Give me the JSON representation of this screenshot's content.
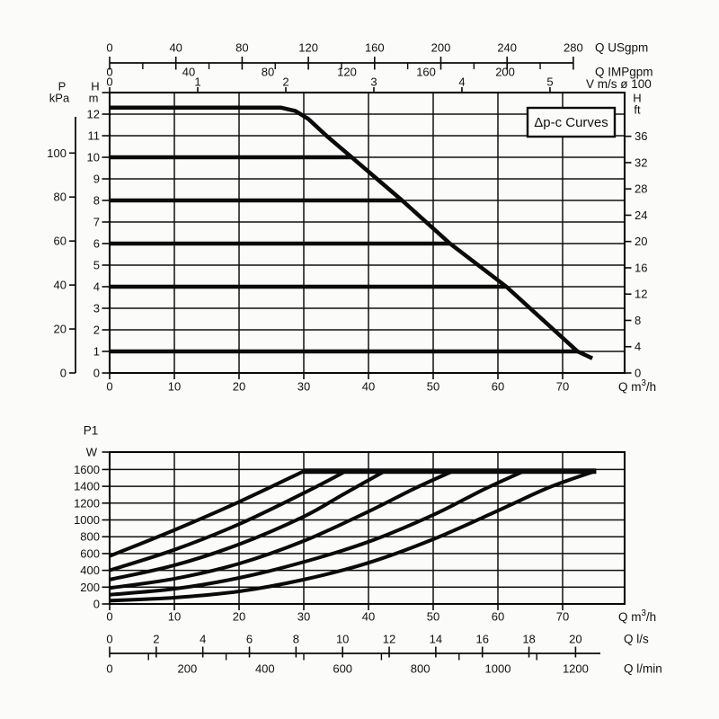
{
  "page": {
    "background": "#fbfbfa",
    "ink": "#0a0a0a",
    "grid_ink": "#111111",
    "text_color": "#111111"
  },
  "title_box": {
    "label": "Δp-c Curves"
  },
  "chart_data": [
    {
      "type": "line",
      "name": "head-vs-flow",
      "xlabel": {
        "pre": "Q m",
        "sup": "3",
        "post": "/h"
      },
      "x_ticks": [
        0,
        10,
        20,
        30,
        40,
        50,
        60,
        70
      ],
      "x_range": [
        0,
        79.6
      ],
      "y_range_m": [
        0,
        13
      ],
      "grid": true,
      "y_axis_m": {
        "header": [
          "H",
          "m"
        ],
        "ticks": [
          0,
          1,
          2,
          3,
          4,
          5,
          6,
          7,
          8,
          9,
          10,
          11,
          12
        ]
      },
      "y_axis_kpa": {
        "header": [
          "P",
          "kPa"
        ],
        "ticks": [
          0,
          20,
          40,
          60,
          80,
          100
        ],
        "m_per_kpa": 0.10197
      },
      "y_axis_ft": {
        "header": [
          "H",
          "ft"
        ],
        "ticks": [
          0,
          4,
          8,
          12,
          16,
          20,
          24,
          28,
          32,
          36
        ],
        "m_per_ft": 0.3048
      },
      "top_axes": [
        {
          "id": "usgpm",
          "label": "Q USgpm",
          "ticks": [
            0,
            40,
            80,
            120,
            160,
            200,
            240,
            280
          ],
          "minor_step": 20,
          "m3h_per_unit": 0.2559
        },
        {
          "id": "impgpm",
          "label": "Q IMPgpm",
          "ticks": [
            0,
            40,
            80,
            120,
            160,
            200
          ],
          "m3h_per_unit": 0.3056
        },
        {
          "id": "v",
          "label": "V m/s ø 100",
          "ticks": [
            0,
            1,
            2,
            3,
            4,
            5
          ],
          "m3h_per_unit": 13.61
        }
      ],
      "max_curve": [
        [
          0,
          12.3
        ],
        [
          26.5,
          12.3
        ],
        [
          28.7,
          12.15
        ],
        [
          30.7,
          11.78
        ],
        [
          33.5,
          11.0
        ],
        [
          37.4,
          10
        ],
        [
          45.2,
          8
        ],
        [
          52.6,
          6
        ],
        [
          61.3,
          4
        ],
        [
          72.3,
          1
        ],
        [
          74.6,
          0.68
        ]
      ],
      "constant_pressure_lines": [
        {
          "h": 10,
          "q_end": 37.4
        },
        {
          "h": 8,
          "q_end": 45.2
        },
        {
          "h": 6,
          "q_end": 52.6
        },
        {
          "h": 4,
          "q_end": 61.3
        },
        {
          "h": 1,
          "q_end": 72.3
        }
      ]
    },
    {
      "type": "line",
      "name": "power-vs-flow",
      "ylabel": [
        "P1",
        "W"
      ],
      "xlabel": {
        "pre": "Q m",
        "sup": "3",
        "post": "/h"
      },
      "x_ticks": [
        0,
        10,
        20,
        30,
        40,
        50,
        60,
        70
      ],
      "x_range": [
        0,
        79.6
      ],
      "y_ticks": [
        0,
        200,
        400,
        600,
        800,
        1000,
        1200,
        1400,
        1600
      ],
      "y_range_w": [
        0,
        1810
      ],
      "grid": true,
      "power_limit_line": {
        "p": 1580,
        "q_start": 30,
        "q_end": 75.2
      },
      "curves": [
        {
          "name": "power-setting-12m",
          "points": [
            [
              0,
              570
            ],
            [
              10,
              880
            ],
            [
              20,
              1215
            ],
            [
              30,
              1580
            ]
          ]
        },
        {
          "name": "power-setting-10m",
          "points": [
            [
              0,
              400
            ],
            [
              10,
              645
            ],
            [
              20,
              950
            ],
            [
              30,
              1320
            ],
            [
              36.5,
              1580
            ]
          ]
        },
        {
          "name": "power-setting-8m",
          "points": [
            [
              0,
              290
            ],
            [
              10,
              460
            ],
            [
              20,
              710
            ],
            [
              30,
              1040
            ],
            [
              36,
              1300
            ],
            [
              42.5,
              1580
            ]
          ]
        },
        {
          "name": "power-setting-6m",
          "points": [
            [
              0,
              190
            ],
            [
              10,
              300
            ],
            [
              20,
              480
            ],
            [
              30,
              750
            ],
            [
              40,
              1100
            ],
            [
              47,
              1370
            ],
            [
              53,
              1580
            ]
          ]
        },
        {
          "name": "power-setting-4m",
          "points": [
            [
              0,
              110
            ],
            [
              10,
              180
            ],
            [
              20,
              310
            ],
            [
              30,
              500
            ],
            [
              40,
              740
            ],
            [
              50,
              1060
            ],
            [
              58,
              1370
            ],
            [
              64,
              1580
            ]
          ]
        },
        {
          "name": "power-setting-1m",
          "points": [
            [
              0,
              40
            ],
            [
              10,
              75
            ],
            [
              20,
              150
            ],
            [
              30,
              290
            ],
            [
              40,
              490
            ],
            [
              50,
              770
            ],
            [
              60,
              1110
            ],
            [
              68,
              1390
            ],
            [
              75,
              1580
            ]
          ]
        }
      ],
      "aux_axes": [
        {
          "id": "ls",
          "label": "Q l/s",
          "ticks": [
            0,
            2,
            4,
            6,
            8,
            10,
            12,
            14,
            16,
            18,
            20
          ],
          "m3h_per_unit": 3.6
        },
        {
          "id": "lmin",
          "label": "Q l/min",
          "ticks": [
            0,
            200,
            400,
            600,
            800,
            1000,
            1200
          ],
          "minor_step": 100,
          "m3h_per_unit": 0.06
        }
      ]
    }
  ]
}
